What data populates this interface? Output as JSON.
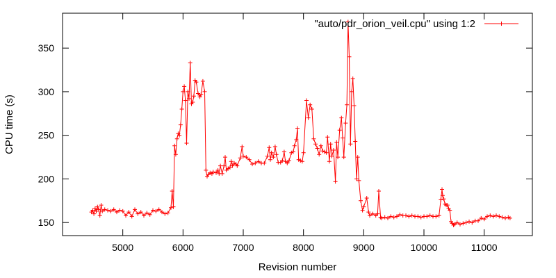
{
  "chart_data": {
    "type": "line",
    "title": "",
    "xlabel": "Revision number",
    "ylabel": "CPU time (s)",
    "xlim": [
      4000,
      11800
    ],
    "ylim": [
      135,
      390
    ],
    "grid": false,
    "legend_position": "top-right",
    "x_ticks": [
      5000,
      6000,
      7000,
      8000,
      9000,
      10000,
      11000
    ],
    "y_ticks": [
      150,
      200,
      250,
      300,
      350
    ],
    "series": [
      {
        "name": "\"auto/pdr_orion_veil.cpu\" using 1:2",
        "color": "#ff0000",
        "marker": "plus",
        "points": [
          [
            4480,
            162
          ],
          [
            4500,
            164
          ],
          [
            4520,
            160
          ],
          [
            4540,
            166
          ],
          [
            4560,
            163
          ],
          [
            4580,
            168
          ],
          [
            4600,
            165
          ],
          [
            4620,
            158
          ],
          [
            4640,
            170
          ],
          [
            4660,
            163
          ],
          [
            4700,
            165
          ],
          [
            4750,
            164
          ],
          [
            4800,
            163
          ],
          [
            4850,
            165
          ],
          [
            4900,
            162
          ],
          [
            4950,
            164
          ],
          [
            5000,
            163
          ],
          [
            5050,
            158
          ],
          [
            5100,
            162
          ],
          [
            5150,
            157
          ],
          [
            5200,
            165
          ],
          [
            5250,
            160
          ],
          [
            5300,
            162
          ],
          [
            5350,
            158
          ],
          [
            5400,
            161
          ],
          [
            5450,
            159
          ],
          [
            5500,
            164
          ],
          [
            5550,
            163
          ],
          [
            5600,
            165
          ],
          [
            5650,
            162
          ],
          [
            5700,
            160
          ],
          [
            5750,
            161
          ],
          [
            5800,
            167
          ],
          [
            5820,
            186
          ],
          [
            5840,
            168
          ],
          [
            5860,
            238
          ],
          [
            5880,
            228
          ],
          [
            5900,
            246
          ],
          [
            5920,
            252
          ],
          [
            5940,
            250
          ],
          [
            5960,
            262
          ],
          [
            5980,
            280
          ],
          [
            6000,
            300
          ],
          [
            6020,
            306
          ],
          [
            6040,
            290
          ],
          [
            6060,
            241
          ],
          [
            6080,
            300
          ],
          [
            6100,
            292
          ],
          [
            6120,
            333
          ],
          [
            6140,
            286
          ],
          [
            6160,
            288
          ],
          [
            6180,
            295
          ],
          [
            6200,
            313
          ],
          [
            6220,
            311
          ],
          [
            6250,
            298
          ],
          [
            6280,
            294
          ],
          [
            6300,
            297
          ],
          [
            6330,
            312
          ],
          [
            6360,
            300
          ],
          [
            6380,
            210
          ],
          [
            6400,
            203
          ],
          [
            6420,
            205
          ],
          [
            6450,
            207
          ],
          [
            6480,
            206
          ],
          [
            6500,
            208
          ],
          [
            6550,
            207
          ],
          [
            6580,
            210
          ],
          [
            6600,
            206
          ],
          [
            6620,
            215
          ],
          [
            6650,
            206
          ],
          [
            6680,
            215
          ],
          [
            6700,
            225
          ],
          [
            6720,
            210
          ],
          [
            6750,
            212
          ],
          [
            6780,
            213
          ],
          [
            6800,
            220
          ],
          [
            6820,
            215
          ],
          [
            6850,
            218
          ],
          [
            6880,
            217
          ],
          [
            6900,
            215
          ],
          [
            6950,
            224
          ],
          [
            6980,
            237
          ],
          [
            7000,
            226
          ],
          [
            7050,
            225
          ],
          [
            7100,
            222
          ],
          [
            7150,
            217
          ],
          [
            7200,
            218
          ],
          [
            7250,
            220
          ],
          [
            7300,
            218
          ],
          [
            7350,
            218
          ],
          [
            7400,
            226
          ],
          [
            7430,
            236
          ],
          [
            7450,
            222
          ],
          [
            7470,
            230
          ],
          [
            7500,
            225
          ],
          [
            7530,
            237
          ],
          [
            7550,
            228
          ],
          [
            7580,
            219
          ],
          [
            7620,
            219
          ],
          [
            7650,
            221
          ],
          [
            7680,
            231
          ],
          [
            7700,
            220
          ],
          [
            7730,
            218
          ],
          [
            7760,
            221
          ],
          [
            7800,
            230
          ],
          [
            7830,
            231
          ],
          [
            7850,
            238
          ],
          [
            7880,
            245
          ],
          [
            7900,
            258
          ],
          [
            7920,
            222
          ],
          [
            7950,
            221
          ],
          [
            7980,
            220
          ],
          [
            8000,
            230
          ],
          [
            8050,
            290
          ],
          [
            8080,
            270
          ],
          [
            8110,
            285
          ],
          [
            8140,
            280
          ],
          [
            8170,
            246
          ],
          [
            8200,
            240
          ],
          [
            8230,
            235
          ],
          [
            8260,
            228
          ],
          [
            8290,
            238
          ],
          [
            8320,
            232
          ],
          [
            8350,
            231
          ],
          [
            8380,
            230
          ],
          [
            8400,
            248
          ],
          [
            8430,
            220
          ],
          [
            8450,
            240
          ],
          [
            8470,
            226
          ],
          [
            8500,
            233
          ],
          [
            8530,
            197
          ],
          [
            8550,
            242
          ],
          [
            8570,
            225
          ],
          [
            8600,
            256
          ],
          [
            8630,
            270
          ],
          [
            8650,
            247
          ],
          [
            8670,
            225
          ],
          [
            8700,
            264
          ],
          [
            8720,
            285
          ],
          [
            8740,
            380
          ],
          [
            8760,
            340
          ],
          [
            8780,
            240
          ],
          [
            8800,
            300
          ],
          [
            8820,
            315
          ],
          [
            8840,
            284
          ],
          [
            8860,
            243
          ],
          [
            8880,
            200
          ],
          [
            8900,
            225
          ],
          [
            8920,
            198
          ],
          [
            8950,
            175
          ],
          [
            8980,
            164
          ],
          [
            9000,
            168
          ],
          [
            9050,
            178
          ],
          [
            9080,
            162
          ],
          [
            9100,
            158
          ],
          [
            9150,
            160
          ],
          [
            9200,
            158
          ],
          [
            9230,
            160
          ],
          [
            9250,
            186
          ],
          [
            9280,
            156
          ],
          [
            9300,
            155
          ],
          [
            9350,
            156
          ],
          [
            9400,
            155
          ],
          [
            9450,
            157
          ],
          [
            9500,
            156
          ],
          [
            9550,
            157
          ],
          [
            9600,
            159
          ],
          [
            9650,
            158
          ],
          [
            9700,
            158
          ],
          [
            9750,
            157
          ],
          [
            9800,
            158
          ],
          [
            9850,
            157
          ],
          [
            9900,
            157
          ],
          [
            9950,
            156
          ],
          [
            10000,
            157
          ],
          [
            10050,
            157
          ],
          [
            10100,
            158
          ],
          [
            10150,
            157
          ],
          [
            10200,
            157
          ],
          [
            10250,
            158
          ],
          [
            10280,
            176
          ],
          [
            10300,
            188
          ],
          [
            10310,
            181
          ],
          [
            10330,
            177
          ],
          [
            10350,
            171
          ],
          [
            10370,
            170
          ],
          [
            10390,
            170
          ],
          [
            10410,
            166
          ],
          [
            10430,
            164
          ],
          [
            10450,
            151
          ],
          [
            10470,
            149
          ],
          [
            10490,
            147
          ],
          [
            10510,
            148
          ],
          [
            10550,
            150
          ],
          [
            10600,
            148
          ],
          [
            10650,
            149
          ],
          [
            10700,
            150
          ],
          [
            10750,
            151
          ],
          [
            10800,
            150
          ],
          [
            10850,
            152
          ],
          [
            10900,
            152
          ],
          [
            10950,
            155
          ],
          [
            11000,
            154
          ],
          [
            11050,
            157
          ],
          [
            11100,
            158
          ],
          [
            11150,
            157
          ],
          [
            11200,
            158
          ],
          [
            11250,
            157
          ],
          [
            11300,
            156
          ],
          [
            11350,
            155
          ],
          [
            11400,
            156
          ],
          [
            11430,
            155
          ]
        ]
      }
    ]
  }
}
